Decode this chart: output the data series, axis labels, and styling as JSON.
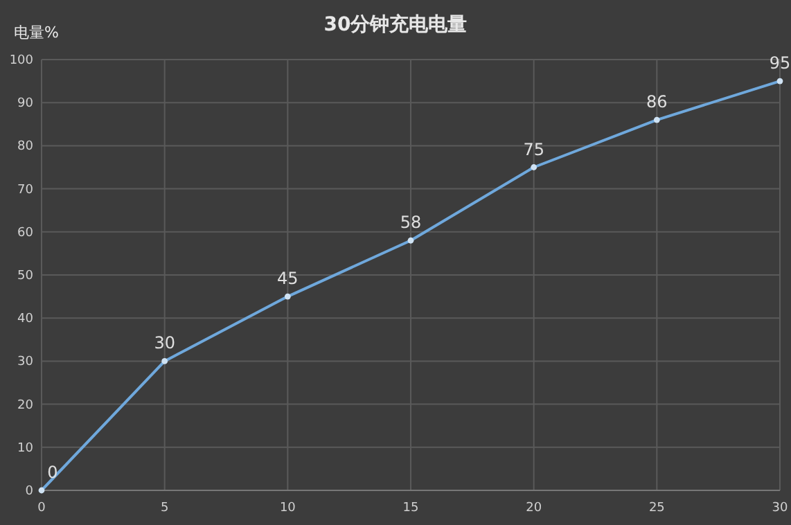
{
  "chart_data": {
    "type": "line",
    "title": "30分钟充电电量",
    "ylabel": "电量%",
    "x": [
      0,
      5,
      10,
      15,
      20,
      25,
      30
    ],
    "values": [
      0,
      30,
      45,
      58,
      75,
      86,
      95
    ],
    "color": "#6fa8dc",
    "marker": "circle",
    "data_labels": true,
    "grid": true,
    "xlim": [
      0,
      30
    ],
    "ylim": [
      0,
      100
    ],
    "xticks": [
      0,
      5,
      10,
      15,
      20,
      25,
      30
    ],
    "yticks": [
      0,
      10,
      20,
      30,
      40,
      50,
      60,
      70,
      80,
      90,
      100
    ]
  }
}
